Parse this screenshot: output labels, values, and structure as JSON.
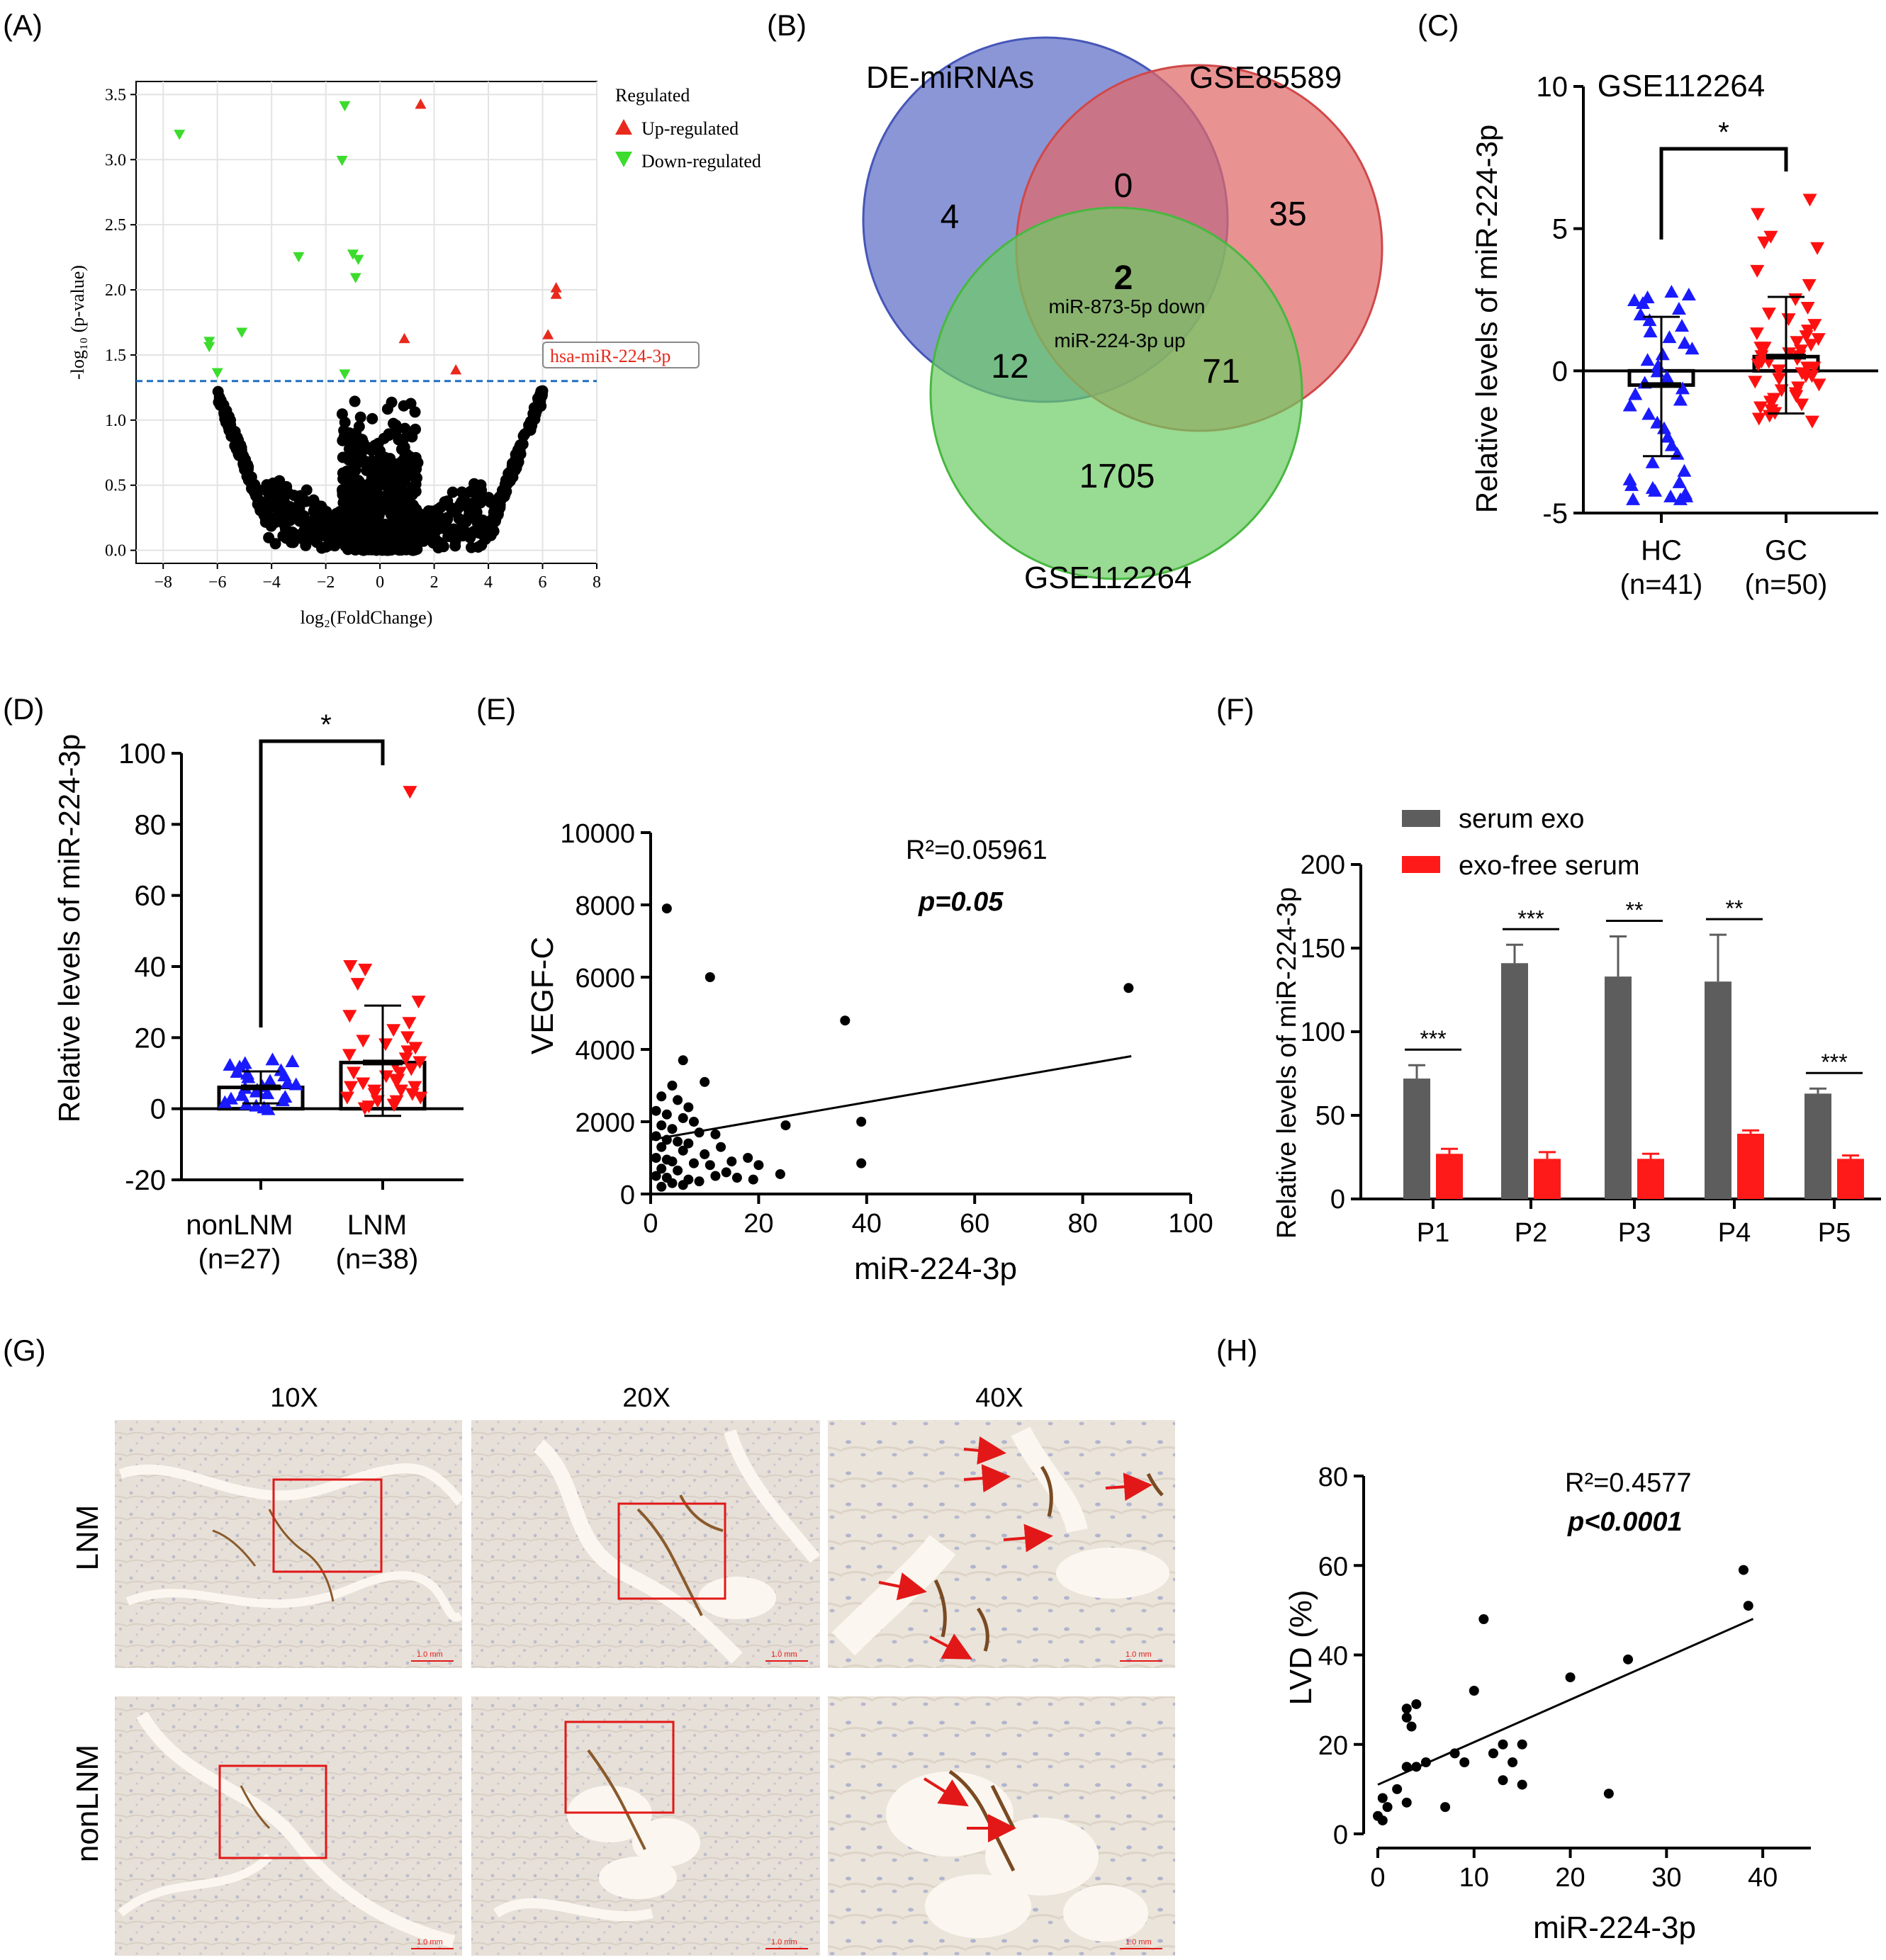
{
  "colors": {
    "up": "#e8291c",
    "down": "#3bdc2c",
    "blue_pt": "#1a1aff",
    "red_pt": "#ff1010",
    "exo": "#5d5d5d",
    "exofree": "#ff1a1a",
    "venn_blue": "#6a79cc",
    "venn_red": "#e06868",
    "venn_green": "#6ccc64",
    "threshold": "#1f6fc0"
  },
  "icons": {
    "arrow": "red-arrow-icon",
    "box": "zoom-box-icon"
  },
  "panels": {
    "A": {
      "label": "(A)"
    },
    "B": {
      "label": "(B)"
    },
    "C": {
      "label": "(C)"
    },
    "D": {
      "label": "(D)"
    },
    "E": {
      "label": "(E)"
    },
    "F": {
      "label": "(F)"
    },
    "G": {
      "label": "(G)"
    },
    "H": {
      "label": "(H)"
    }
  },
  "chart_data": [
    {
      "id": "A",
      "type": "scatter",
      "title": "",
      "xlabel": "log₂(FoldChange)",
      "ylabel": "-log₁₀ (p-value)",
      "xlim": [
        -9,
        8
      ],
      "ylim": [
        -0.1,
        3.6
      ],
      "xticks": [
        "−8",
        "−6",
        "−4",
        "−2",
        "0",
        "2",
        "4",
        "6",
        "8"
      ],
      "yticks": [
        "0.0",
        "0.5",
        "1.0",
        "1.5",
        "2.0",
        "2.5",
        "3.0",
        "3.5"
      ],
      "threshold": 1.3,
      "legend_title": "Regulated",
      "legend": [
        "Up-regulated",
        "Down-regulated"
      ],
      "annotation": "hsa-miR-224-3p",
      "up": [
        [
          1.5,
          3.43
        ],
        [
          6.5,
          2.02
        ],
        [
          6.5,
          1.97
        ],
        [
          6.2,
          1.66
        ],
        [
          0.9,
          1.63
        ],
        [
          2.8,
          1.39
        ]
      ],
      "down": [
        [
          -7.4,
          3.19
        ],
        [
          -1.3,
          3.41
        ],
        [
          -1.4,
          2.99
        ],
        [
          -3.0,
          2.25
        ],
        [
          -1.0,
          2.27
        ],
        [
          -0.8,
          2.23
        ],
        [
          -0.9,
          2.09
        ],
        [
          -5.1,
          1.67
        ],
        [
          -6.3,
          1.6
        ],
        [
          -6.3,
          1.56
        ],
        [
          -6.0,
          1.36
        ],
        [
          -1.3,
          1.35
        ]
      ]
    },
    {
      "id": "B",
      "type": "venn",
      "sets": [
        "DE-miRNAs",
        "GSE85589",
        "GSE112264"
      ],
      "regions": {
        "a_only": "4",
        "b_only": "35",
        "c_only": "1705",
        "ab": "0",
        "ac": "12",
        "bc": "71",
        "abc": "2"
      },
      "abc_labels": [
        "miR-873-5p  down",
        "miR-224-3p  up"
      ]
    },
    {
      "id": "C",
      "type": "scatter",
      "title": "GSE112264",
      "ylabel": "Relative levels of miR-224-3p",
      "ylim": [
        -5,
        10
      ],
      "yticks": [
        "-5",
        "0",
        "5",
        "10"
      ],
      "categories": [
        "HC",
        "GC"
      ],
      "n_labels": [
        "(n=41)",
        "(n=50)"
      ],
      "significance": "*",
      "series": [
        {
          "name": "HC",
          "mean": -0.5,
          "sd_low": -3.0,
          "sd_high": 1.9,
          "values": [
            2.8,
            2.7,
            2.6,
            2.5,
            2.4,
            2.2,
            2.0,
            1.8,
            1.6,
            1.4,
            1.2,
            1.0,
            0.8,
            0.6,
            0.4,
            0.2,
            0.0,
            -0.2,
            -0.4,
            -0.6,
            -0.8,
            -1.0,
            -1.2,
            -1.5,
            -1.8,
            -2.0,
            -2.3,
            -2.6,
            -2.9,
            -3.2,
            -3.5,
            -3.8,
            -4.0,
            -4.2,
            -4.4,
            -4.5,
            -4.5,
            -4.4,
            -4.3,
            -4.1,
            -3.9
          ]
        },
        {
          "name": "GC",
          "mean": 0.5,
          "sd_low": -1.5,
          "sd_high": 2.6,
          "values": [
            6.0,
            5.5,
            4.7,
            4.5,
            4.3,
            3.5,
            3.0,
            2.5,
            2.2,
            2.0,
            1.8,
            1.6,
            1.4,
            1.3,
            1.2,
            1.1,
            1.0,
            0.9,
            0.8,
            0.7,
            0.6,
            0.5,
            0.4,
            0.3,
            0.2,
            0.1,
            0.0,
            -0.1,
            -0.2,
            -0.3,
            -0.4,
            -0.5,
            -0.6,
            -0.7,
            -0.8,
            -0.9,
            -1.0,
            -1.1,
            -1.2,
            -1.3,
            -1.4,
            -1.5,
            -1.6,
            -1.7,
            -1.8,
            0.3,
            0.5,
            -0.2,
            0.8,
            0.1
          ]
        }
      ]
    },
    {
      "id": "D",
      "type": "scatter",
      "ylabel": "Relative levels of miR-224-3p",
      "ylim": [
        -20,
        100
      ],
      "yticks": [
        "-20",
        "0",
        "20",
        "40",
        "60",
        "80",
        "100"
      ],
      "categories": [
        "nonLNM",
        "LNM"
      ],
      "n_labels": [
        "(n=27)",
        "(n=38)"
      ],
      "significance": "*",
      "series": [
        {
          "name": "nonLNM",
          "mean": 6.0,
          "sd_low": 1.5,
          "sd_high": 10.5,
          "values": [
            14,
            13.5,
            13,
            12.5,
            12,
            11,
            10.5,
            10,
            9.5,
            9,
            8,
            7.5,
            7,
            6.5,
            6,
            5.5,
            5,
            4.5,
            4,
            3.5,
            3,
            2.5,
            2,
            1.5,
            1,
            0.5,
            0
          ]
        },
        {
          "name": "LNM",
          "mean": 13.0,
          "sd_low": -2.0,
          "sd_high": 29.0,
          "values": [
            89,
            40,
            39,
            35,
            30,
            26,
            24,
            22,
            20,
            19,
            18,
            17,
            16,
            15,
            14,
            13,
            12,
            11,
            10,
            10,
            9,
            8,
            8,
            7,
            6,
            6,
            5,
            5,
            4,
            4,
            3,
            3,
            2,
            2,
            1,
            1,
            0.5,
            0
          ]
        }
      ]
    },
    {
      "id": "E",
      "type": "scatter",
      "xlabel": "miR-224-3p",
      "ylabel": "VEGF-C",
      "xlim": [
        0,
        100
      ],
      "ylim": [
        0,
        10000
      ],
      "xticks": [
        "0",
        "20",
        "40",
        "60",
        "80",
        "100"
      ],
      "yticks": [
        "0",
        "2000",
        "4000",
        "6000",
        "8000",
        "10000"
      ],
      "annotation_r2": "R²=0.05961",
      "annotation_p": "p=0.05",
      "fit": {
        "intercept": 1500,
        "slope": 26
      },
      "points": [
        [
          3,
          7900
        ],
        [
          11,
          6000
        ],
        [
          88.5,
          5700
        ],
        [
          36,
          4800
        ],
        [
          39,
          2000
        ],
        [
          39,
          850
        ],
        [
          25,
          1900
        ],
        [
          6,
          3700
        ],
        [
          10,
          3100
        ],
        [
          4,
          3000
        ],
        [
          2,
          2700
        ],
        [
          5,
          2600
        ],
        [
          7,
          2400
        ],
        [
          1,
          2300
        ],
        [
          3,
          2200
        ],
        [
          6,
          2100
        ],
        [
          8,
          2000
        ],
        [
          2,
          1900
        ],
        [
          4,
          1800
        ],
        [
          9,
          1700
        ],
        [
          12,
          1650
        ],
        [
          1,
          1600
        ],
        [
          3,
          1500
        ],
        [
          5,
          1450
        ],
        [
          7,
          1400
        ],
        [
          2,
          1300
        ],
        [
          6,
          1200
        ],
        [
          10,
          1100
        ],
        [
          1,
          1000
        ],
        [
          3,
          950
        ],
        [
          4,
          900
        ],
        [
          8,
          850
        ],
        [
          11,
          800
        ],
        [
          2,
          700
        ],
        [
          5,
          650
        ],
        [
          14,
          600
        ],
        [
          24,
          550
        ],
        [
          1,
          500
        ],
        [
          3,
          450
        ],
        [
          7,
          400
        ],
        [
          9,
          350
        ],
        [
          4,
          300
        ],
        [
          6,
          250
        ],
        [
          2,
          200
        ],
        [
          12,
          500
        ],
        [
          16,
          450
        ],
        [
          19,
          400
        ],
        [
          15,
          900
        ],
        [
          18,
          1000
        ],
        [
          13,
          1300
        ],
        [
          20,
          800
        ]
      ]
    },
    {
      "id": "F",
      "type": "bar",
      "ylabel": "Relative levels of miR-224-3p",
      "ylim": [
        0,
        200
      ],
      "yticks": [
        "0",
        "50",
        "100",
        "150",
        "200"
      ],
      "categories": [
        "P1",
        "P2",
        "P3",
        "P4",
        "P5"
      ],
      "series": [
        {
          "name": "serum exo",
          "values": [
            72,
            141,
            133,
            130,
            63
          ],
          "err": [
            8,
            11,
            24,
            28,
            3
          ]
        },
        {
          "name": "exo-free serum",
          "values": [
            27,
            24,
            24,
            39,
            24
          ],
          "err": [
            3,
            4,
            3,
            2,
            2
          ]
        }
      ],
      "significance": [
        "***",
        "***",
        "**",
        "**",
        "***"
      ]
    },
    {
      "id": "G",
      "type": "image-grid",
      "column_labels": [
        "10X",
        "20X",
        "40X"
      ],
      "row_labels": [
        "LNM",
        "nonLNM"
      ],
      "scale_label": "1.0 mm"
    },
    {
      "id": "H",
      "type": "scatter",
      "xlabel": "miR-224-3p",
      "ylabel": "LVD (%)",
      "xlim": [
        0,
        45
      ],
      "ylim": [
        0,
        80
      ],
      "xticks": [
        "0",
        "10",
        "20",
        "30",
        "40"
      ],
      "yticks": [
        "0",
        "20",
        "40",
        "60",
        "80"
      ],
      "annotation_r2": "R²=0.4577",
      "annotation_p": "p<0.0001",
      "fit": {
        "intercept": 11,
        "slope": 0.95
      },
      "points": [
        [
          38,
          59
        ],
        [
          38.5,
          51
        ],
        [
          11,
          48
        ],
        [
          20,
          35
        ],
        [
          26,
          39
        ],
        [
          10,
          32
        ],
        [
          4,
          29
        ],
        [
          3,
          28
        ],
        [
          3,
          26
        ],
        [
          3.5,
          24
        ],
        [
          8,
          18
        ],
        [
          9,
          16
        ],
        [
          12,
          18
        ],
        [
          13,
          20
        ],
        [
          14,
          16
        ],
        [
          15,
          20
        ],
        [
          13,
          12
        ],
        [
          15,
          11
        ],
        [
          5,
          16
        ],
        [
          4,
          15
        ],
        [
          3,
          15
        ],
        [
          2,
          10
        ],
        [
          3,
          7
        ],
        [
          1,
          6
        ],
        [
          0.5,
          8
        ],
        [
          0,
          4
        ],
        [
          0.5,
          3
        ],
        [
          7,
          6
        ],
        [
          24,
          9
        ]
      ]
    }
  ]
}
